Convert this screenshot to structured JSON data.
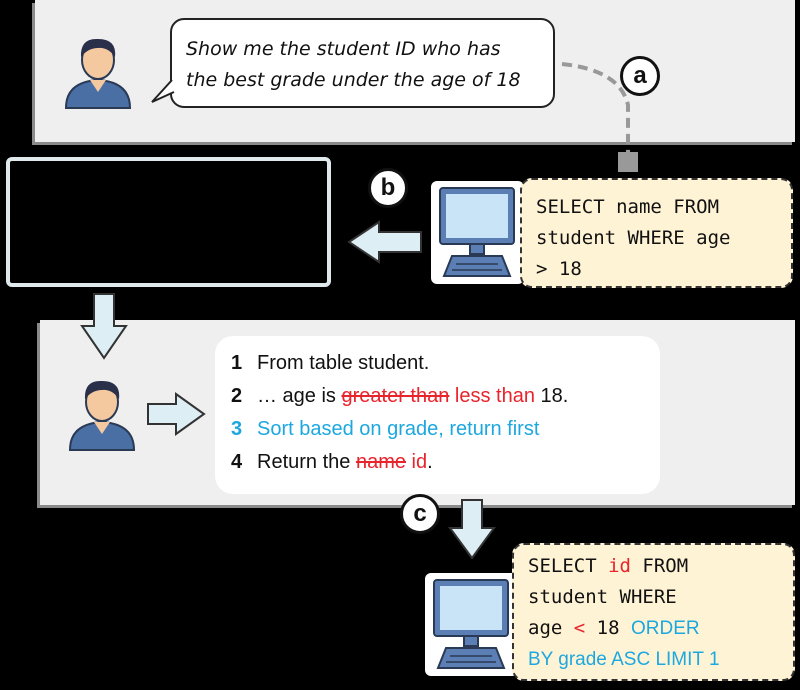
{
  "query": {
    "text_line1": "Show me the student ID  who has",
    "text_line2": "the best grade under the age of 18"
  },
  "labels": {
    "a": "a",
    "b": "b",
    "c": "c"
  },
  "initial_sql": {
    "line1": "SELECT name FROM",
    "line2": "student WHERE age",
    "line3": "> 18"
  },
  "feedback_steps": [
    {
      "num": "1",
      "text": "From table student."
    },
    {
      "num": "2",
      "prefix": "… age is ",
      "struck": "greater than",
      "correction": " less than",
      "suffix": " 18."
    },
    {
      "num": "3",
      "text": "Sort based on grade, return first"
    },
    {
      "num": "4",
      "prefix": "Return the ",
      "struck": "name",
      "correction": " id",
      "suffix": "."
    }
  ],
  "corrected_sql": {
    "l1_a": "SELECT ",
    "l1_b": "id",
    "l1_c": " FROM",
    "l2": "student WHERE",
    "l3_a": "age ",
    "l3_b": "<",
    "l3_c": " 18 ",
    "l3_d": "ORDER",
    "l4": "BY grade ASC LIMIT 1"
  },
  "colors": {
    "red": "#e8242c",
    "blue": "#1ca8df",
    "sql_bg": "#fff3d6",
    "panel": "#efefef"
  },
  "icons": [
    "user-icon",
    "computer-icon",
    "arrow-icon"
  ]
}
